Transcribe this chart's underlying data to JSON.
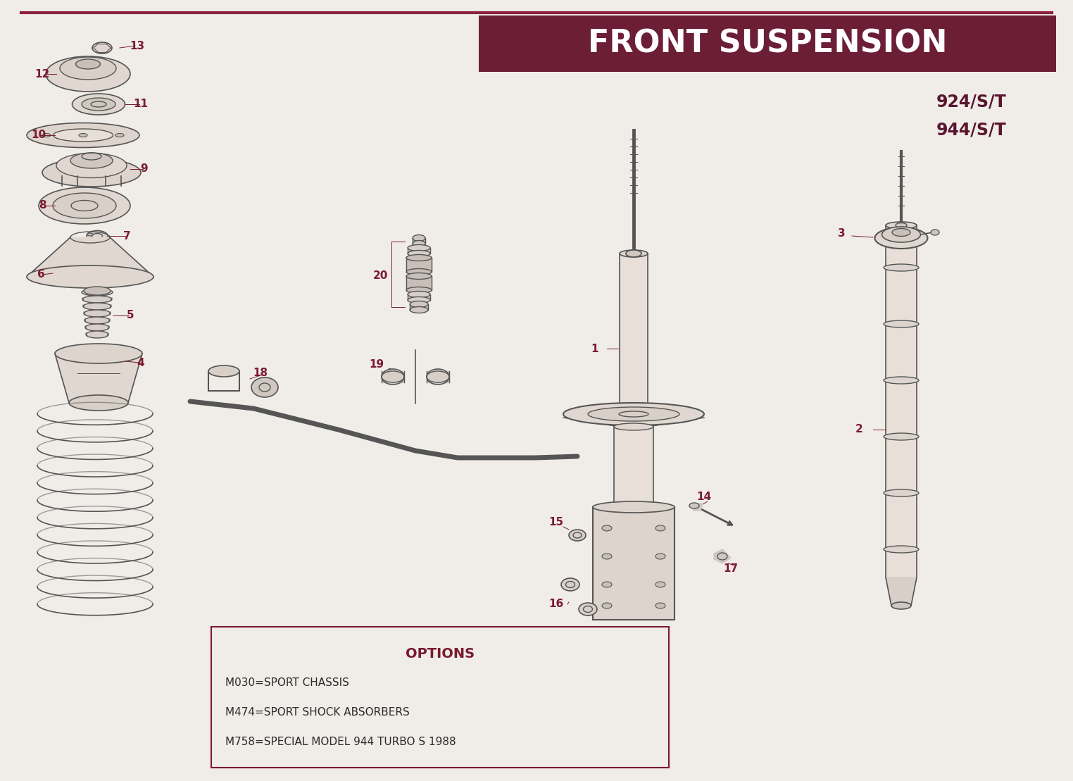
{
  "title": "FRONT SUSPENSION",
  "subtitle1": "924/S/T",
  "subtitle2": "944/S/T",
  "bg_color": "#f0ede8",
  "title_bg_color": "#6b1e35",
  "title_text_color": "#ffffff",
  "subtitle_color": "#5a1530",
  "part_color": "#7a1a30",
  "draw_color": "#555555",
  "border_color": "#8b2040",
  "options_title": "OPTIONS",
  "options_lines": [
    "M030=SPORT CHASSIS",
    "M474=SPORT SHOCK ABSORBERS",
    "M758=SPECIAL MODEL 944 TURBO S 1988"
  ],
  "fig_w": 15.24,
  "fig_h": 11.09,
  "dpi": 100
}
